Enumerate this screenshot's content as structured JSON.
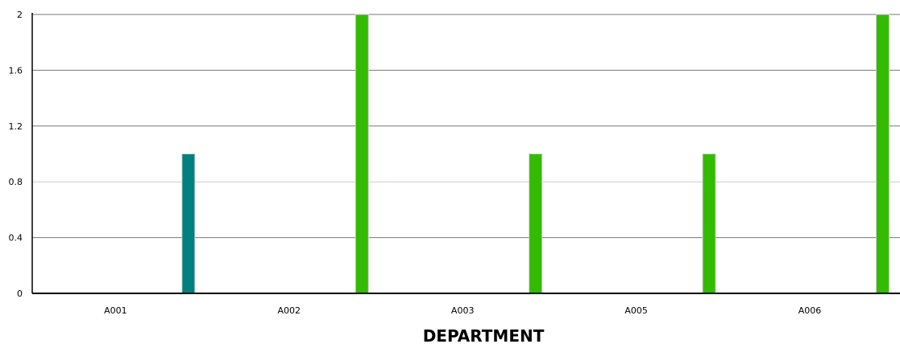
{
  "chart_data": {
    "type": "bar",
    "title": "",
    "xlabel": "DEPARTMENT",
    "ylabel": "",
    "categories": [
      "A001",
      "A002",
      "A003",
      "A005",
      "A006"
    ],
    "series": [
      {
        "values": [
          1,
          2,
          1,
          1,
          2
        ]
      }
    ],
    "bar_colors": [
      "#008080",
      "#33bb00",
      "#33bb00",
      "#33bb00",
      "#33bb00"
    ],
    "ylim": [
      0,
      2
    ],
    "yticks": [
      0,
      0.4,
      0.8,
      1.2,
      1.6,
      2
    ],
    "ytick_labels": [
      "0",
      "0.4",
      "0.8",
      "1.2",
      "1.6",
      "2"
    ],
    "grid": true,
    "gridline_color": "#777777",
    "legend": "none"
  }
}
